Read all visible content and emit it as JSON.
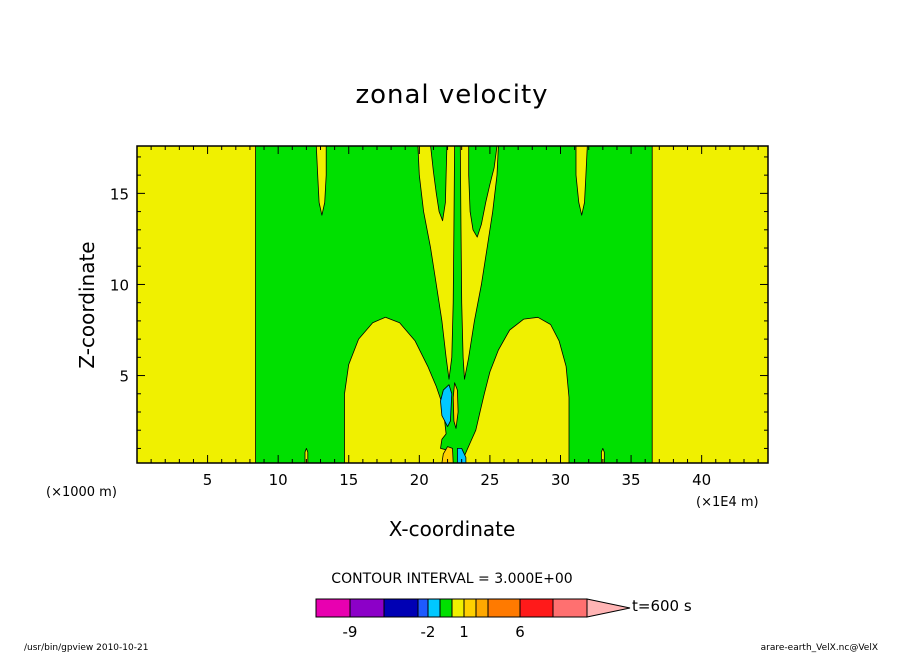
{
  "chart_data": {
    "type": "heatmap",
    "title": "zonal velocity",
    "xlabel": "X-coordinate",
    "ylabel": "Z-coordinate",
    "x_unit_left": "(×1000 m)",
    "x_unit_right": "(×1E4 m)",
    "xlim": [
      0,
      44.7
    ],
    "ylim": [
      0.2,
      17.6
    ],
    "x_ticks": [
      5,
      10,
      15,
      20,
      25,
      30,
      35,
      40
    ],
    "y_ticks": [
      5,
      10,
      15
    ],
    "contour_interval": "CONTOUR INTERVAL = 3.000E+00",
    "colorbar": {
      "colors": [
        "#e800b0",
        "#8c00c8",
        "#0000b4",
        "#1e5aff",
        "#00c8ff",
        "#00e000",
        "#f0f000",
        "#ffd000",
        "#ffa800",
        "#ff7a00",
        "#ff1a1a",
        "#ff7070",
        "#ffb4b4"
      ],
      "tick_labels": [
        "-9",
        "-2",
        "1",
        "6"
      ],
      "end_label": "t=600 s"
    },
    "field_colors": {
      "yellow": "#f0f000",
      "green": "#00e000",
      "cyan": "#00c8ff",
      "orange": "#ffd000"
    },
    "regions": [
      {
        "level": "green",
        "polygon": [
          [
            8.4,
            17.6
          ],
          [
            8.4,
            0.2
          ],
          [
            36.5,
            0.2
          ],
          [
            36.5,
            17.6
          ]
        ]
      },
      {
        "level": "yellow",
        "polygon": [
          [
            14.7,
            0.2
          ],
          [
            14.7,
            4.0
          ],
          [
            15.0,
            5.6
          ],
          [
            15.7,
            7.0
          ],
          [
            16.7,
            7.9
          ],
          [
            17.6,
            8.2
          ],
          [
            18.6,
            7.9
          ],
          [
            19.7,
            6.9
          ],
          [
            20.6,
            5.5
          ],
          [
            21.2,
            4.4
          ],
          [
            21.6,
            3.5
          ],
          [
            21.8,
            2.5
          ],
          [
            21.9,
            1.8
          ],
          [
            21.6,
            1.5
          ],
          [
            21.5,
            1.0
          ],
          [
            22.0,
            0.9
          ],
          [
            22.3,
            0.5
          ],
          [
            22.4,
            0.2
          ]
        ]
      },
      {
        "level": "yellow",
        "polygon": [
          [
            23.1,
            0.2
          ],
          [
            23.2,
            0.6
          ],
          [
            23.6,
            1.3
          ],
          [
            24.0,
            2.0
          ],
          [
            24.3,
            3.0
          ],
          [
            24.6,
            4.0
          ],
          [
            25.0,
            5.2
          ],
          [
            25.6,
            6.4
          ],
          [
            26.4,
            7.5
          ],
          [
            27.4,
            8.1
          ],
          [
            28.4,
            8.2
          ],
          [
            29.3,
            7.8
          ],
          [
            29.9,
            6.9
          ],
          [
            30.4,
            5.5
          ],
          [
            30.6,
            3.8
          ],
          [
            30.6,
            0.2
          ]
        ]
      },
      {
        "level": "yellow",
        "polygon": [
          [
            19.9,
            17.6
          ],
          [
            20.0,
            16.0
          ],
          [
            20.3,
            14.0
          ],
          [
            20.8,
            12.0
          ],
          [
            21.2,
            10.0
          ],
          [
            21.6,
            8.0
          ],
          [
            21.9,
            6.0
          ],
          [
            22.1,
            4.8
          ],
          [
            22.3,
            6.0
          ],
          [
            22.4,
            9.0
          ],
          [
            22.45,
            13.0
          ],
          [
            22.5,
            17.6
          ]
        ]
      },
      {
        "level": "yellow",
        "polygon": [
          [
            22.9,
            17.6
          ],
          [
            22.95,
            13.0
          ],
          [
            23.0,
            9.0
          ],
          [
            23.1,
            6.0
          ],
          [
            23.2,
            4.8
          ],
          [
            23.5,
            6.0
          ],
          [
            23.9,
            8.0
          ],
          [
            24.4,
            10.0
          ],
          [
            24.8,
            12.0
          ],
          [
            25.2,
            14.0
          ],
          [
            25.5,
            16.0
          ],
          [
            25.6,
            17.6
          ]
        ]
      },
      {
        "level": "green",
        "polygon": [
          [
            20.8,
            17.6
          ],
          [
            21.0,
            16.2
          ],
          [
            21.2,
            15.0
          ],
          [
            21.4,
            14.0
          ],
          [
            21.65,
            13.5
          ],
          [
            21.85,
            14.5
          ],
          [
            21.9,
            16.0
          ],
          [
            21.95,
            17.6
          ]
        ]
      },
      {
        "level": "green",
        "polygon": [
          [
            23.5,
            17.6
          ],
          [
            23.5,
            16.0
          ],
          [
            23.6,
            14.0
          ],
          [
            23.8,
            13.0
          ],
          [
            24.1,
            12.6
          ],
          [
            24.4,
            13.3
          ],
          [
            24.7,
            14.5
          ],
          [
            25.0,
            15.5
          ],
          [
            25.3,
            16.4
          ],
          [
            25.5,
            17.6
          ]
        ]
      },
      {
        "level": "yellow",
        "polygon": [
          [
            12.7,
            17.6
          ],
          [
            12.8,
            16.0
          ],
          [
            12.9,
            14.5
          ],
          [
            13.1,
            13.8
          ],
          [
            13.3,
            14.5
          ],
          [
            13.4,
            16.0
          ],
          [
            13.4,
            17.6
          ]
        ]
      },
      {
        "level": "yellow",
        "polygon": [
          [
            31.1,
            17.6
          ],
          [
            31.1,
            16.0
          ],
          [
            31.3,
            14.5
          ],
          [
            31.5,
            13.8
          ],
          [
            31.7,
            14.5
          ],
          [
            31.8,
            16.0
          ],
          [
            31.9,
            17.6
          ]
        ]
      },
      {
        "level": "cyan",
        "polygon": [
          [
            21.7,
            4.2
          ],
          [
            22.1,
            4.5
          ],
          [
            22.3,
            4.0
          ],
          [
            22.2,
            2.5
          ],
          [
            22.0,
            2.2
          ],
          [
            21.6,
            2.8
          ],
          [
            21.5,
            3.6
          ]
        ]
      },
      {
        "level": "orange",
        "polygon": [
          [
            22.5,
            4.6
          ],
          [
            22.7,
            4.2
          ],
          [
            22.75,
            3.0
          ],
          [
            22.6,
            2.1
          ],
          [
            22.45,
            2.5
          ],
          [
            22.4,
            3.8
          ]
        ]
      },
      {
        "level": "orange",
        "polygon": [
          [
            21.6,
            0.2
          ],
          [
            21.7,
            0.7
          ],
          [
            22.0,
            1.1
          ],
          [
            22.35,
            1.0
          ],
          [
            22.4,
            0.2
          ]
        ]
      },
      {
        "level": "cyan",
        "polygon": [
          [
            22.7,
            0.2
          ],
          [
            22.7,
            1.0
          ],
          [
            23.0,
            1.0
          ],
          [
            23.3,
            0.5
          ],
          [
            23.3,
            0.2
          ]
        ]
      },
      {
        "level": "yellow",
        "polygon": [
          [
            11.9,
            0.2
          ],
          [
            11.9,
            0.8
          ],
          [
            12.0,
            1.0
          ],
          [
            12.1,
            0.8
          ],
          [
            12.1,
            0.2
          ]
        ]
      },
      {
        "level": "yellow",
        "polygon": [
          [
            32.9,
            0.2
          ],
          [
            32.9,
            0.8
          ],
          [
            33.0,
            1.0
          ],
          [
            33.1,
            0.8
          ],
          [
            33.1,
            0.2
          ]
        ]
      }
    ]
  },
  "footer": {
    "left": "/usr/bin/gpview   2010-10-21",
    "right": "arare-earth_VelX.nc@VelX"
  }
}
